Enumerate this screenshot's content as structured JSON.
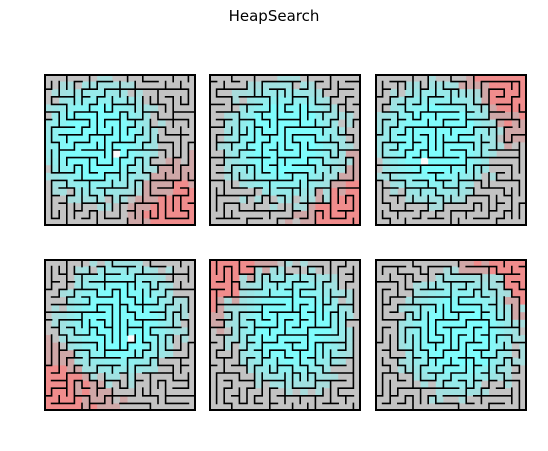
{
  "figure": {
    "title": "HeapSearch"
  },
  "maze": {
    "rows": 20,
    "cols": 20,
    "colors": {
      "unvisited": "#c3c3c3",
      "start_region": "#f08c8c",
      "start_region_light": "#cfa7a7",
      "goal_region": "#7ffcfc",
      "goal_region_light": "#a8dcdc",
      "wall": "#000000"
    },
    "panels": [
      {
        "id": "panel-1",
        "seed": 11,
        "start_corner": "bottom-right",
        "goal_center": [
          0.35,
          0.45
        ]
      },
      {
        "id": "panel-2",
        "seed": 23,
        "start_corner": "bottom-right",
        "goal_center": [
          0.5,
          0.45
        ]
      },
      {
        "id": "panel-3",
        "seed": 37,
        "start_corner": "top-right",
        "goal_center": [
          0.4,
          0.45
        ]
      },
      {
        "id": "panel-4",
        "seed": 41,
        "start_corner": "bottom-left",
        "goal_center": [
          0.5,
          0.4
        ]
      },
      {
        "id": "panel-5",
        "seed": 53,
        "start_corner": "top-left",
        "goal_center": [
          0.55,
          0.45
        ]
      },
      {
        "id": "panel-6",
        "seed": 67,
        "start_corner": "top-right",
        "goal_center": [
          0.55,
          0.5
        ]
      }
    ]
  }
}
